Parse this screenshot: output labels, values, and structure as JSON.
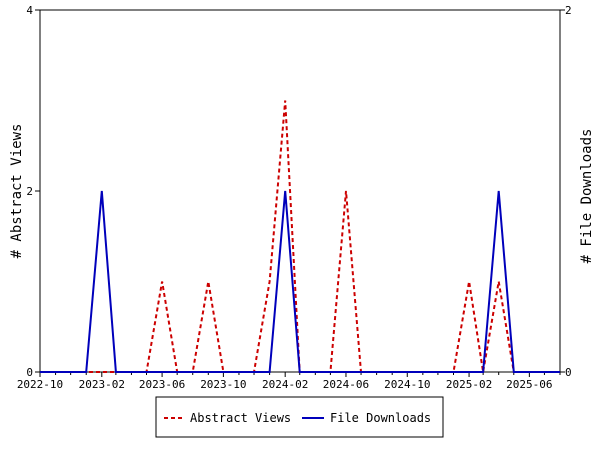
{
  "chart_data": {
    "type": "line",
    "x_tick_labels": [
      "2022-10",
      "2023-02",
      "2023-06",
      "2023-10",
      "2024-02",
      "2024-06",
      "2024-10",
      "2025-02",
      "2025-06"
    ],
    "x_ticks": [
      "2022-10-01",
      "2022-11-01",
      "2022-12-01",
      "2023-01-01",
      "2023-02-01",
      "2023-03-01",
      "2023-04-01",
      "2023-05-01",
      "2023-06-01",
      "2023-07-01",
      "2023-08-01",
      "2023-09-01",
      "2023-10-01",
      "2023-11-01",
      "2023-12-01",
      "2024-01-01",
      "2024-02-01",
      "2024-03-01",
      "2024-04-01",
      "2024-05-01",
      "2024-06-01",
      "2024-07-01",
      "2024-08-01",
      "2024-09-01",
      "2024-10-01",
      "2024-11-01",
      "2024-12-01",
      "2025-01-01",
      "2025-02-01",
      "2025-03-01",
      "2025-04-01",
      "2025-05-01",
      "2025-06-01",
      "2025-07-01",
      "2025-08-01"
    ],
    "xlim": [
      "2022-10-01",
      "2025-08-01"
    ],
    "ylabel_left": "# Abstract Views",
    "ylabel_right": "# File Downloads",
    "ylim_left": [
      0,
      4
    ],
    "ylim_right": [
      0,
      2
    ],
    "y_ticks_left": [
      0,
      2,
      4
    ],
    "y_ticks_right": [
      0,
      2
    ],
    "legend_position": "bottom",
    "grid": false,
    "series": [
      {
        "name": "Abstract Views",
        "axis": "left",
        "color": "#cc0000",
        "dash": "dashed",
        "x": [
          "2022-10-01",
          "2022-11-01",
          "2022-12-01",
          "2023-01-01",
          "2023-02-01",
          "2023-03-01",
          "2023-04-01",
          "2023-05-01",
          "2023-06-01",
          "2023-07-01",
          "2023-08-01",
          "2023-09-01",
          "2023-10-01",
          "2023-11-01",
          "2023-12-01",
          "2024-01-01",
          "2024-02-01",
          "2024-03-01",
          "2024-04-01",
          "2024-05-01",
          "2024-06-01",
          "2024-07-01",
          "2024-08-01",
          "2024-09-01",
          "2024-10-01",
          "2024-11-01",
          "2024-12-01",
          "2025-01-01",
          "2025-02-01",
          "2025-03-01",
          "2025-04-01",
          "2025-05-01",
          "2025-06-01",
          "2025-07-01",
          "2025-08-01"
        ],
        "values": [
          0,
          0,
          0,
          0,
          0,
          0,
          0,
          0,
          1,
          0,
          0,
          1,
          0,
          0,
          0,
          1,
          3,
          0,
          0,
          0,
          2,
          0,
          0,
          0,
          0,
          0,
          0,
          0,
          1,
          0,
          1,
          0,
          0,
          0,
          0
        ]
      },
      {
        "name": "File Downloads",
        "axis": "right",
        "color": "#0000bb",
        "dash": "solid",
        "x": [
          "2022-10-01",
          "2022-11-01",
          "2022-12-01",
          "2023-01-01",
          "2023-02-01",
          "2023-03-01",
          "2023-04-01",
          "2023-05-01",
          "2023-06-01",
          "2023-07-01",
          "2023-08-01",
          "2023-09-01",
          "2023-10-01",
          "2023-11-01",
          "2023-12-01",
          "2024-01-01",
          "2024-02-01",
          "2024-03-01",
          "2024-04-01",
          "2024-05-01",
          "2024-06-01",
          "2024-07-01",
          "2024-08-01",
          "2024-09-01",
          "2024-10-01",
          "2024-11-01",
          "2024-12-01",
          "2025-01-01",
          "2025-02-01",
          "2025-03-01",
          "2025-04-01",
          "2025-05-01",
          "2025-06-01",
          "2025-07-01",
          "2025-08-01"
        ],
        "values": [
          0,
          0,
          0,
          0,
          1,
          0,
          0,
          0,
          0,
          0,
          0,
          0,
          0,
          0,
          0,
          0,
          1,
          0,
          0,
          0,
          0,
          0,
          0,
          0,
          0,
          0,
          0,
          0,
          0,
          0,
          1,
          0,
          0,
          0,
          0
        ]
      }
    ]
  }
}
